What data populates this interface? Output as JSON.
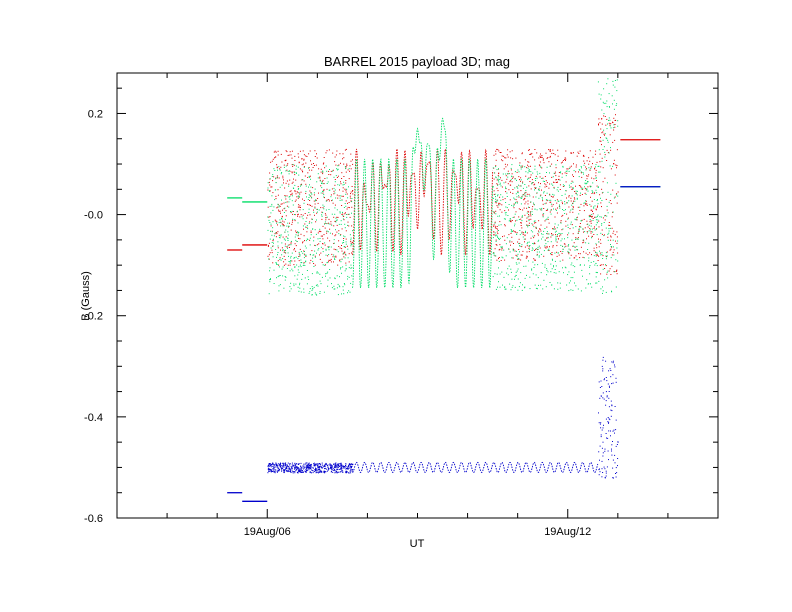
{
  "chart_data": {
    "type": "scatter",
    "title": "BARREL 2015 payload 3D; mag",
    "xlabel": "UT",
    "ylabel": "B (Gauss)",
    "x_hours": [
      3,
      15
    ],
    "x_ticks": [
      {
        "hour": 6,
        "label": "19Aug/06"
      },
      {
        "hour": 12,
        "label": "19Aug/12"
      }
    ],
    "x_minor_hours": [
      4,
      5,
      7,
      8,
      9,
      10,
      11,
      13,
      14
    ],
    "ylim": [
      -0.6,
      0.28
    ],
    "y_ticks": [
      {
        "value": 0.2,
        "label": "0.2"
      },
      {
        "value": 0.0,
        "label": "-0.0"
      },
      {
        "value": -0.2,
        "label": "-0.2"
      },
      {
        "value": -0.4,
        "label": "-0.4"
      },
      {
        "value": -0.6,
        "label": "-0.6"
      }
    ],
    "y_minor_step": 0.05,
    "series": [
      {
        "color": "#dd0000",
        "segments": [
          {
            "kind": "flat",
            "x": [
              5.2,
              5.5
            ],
            "y": -0.07
          },
          {
            "kind": "flat",
            "x": [
              5.5,
              6.0
            ],
            "y": -0.06
          },
          {
            "kind": "band",
            "x": [
              6.0,
              7.7
            ],
            "y": [
              -0.1,
              0.13
            ]
          },
          {
            "kind": "wave",
            "x": [
              7.7,
              10.5
            ],
            "y": [
              -0.08,
              0.13
            ],
            "dips": [
              [
                8.0,
                0.02
              ],
              [
                8.35,
                0.06
              ],
              [
                8.9,
                0.08
              ],
              [
                9.2,
                0.1
              ],
              [
                9.75,
                0.08
              ],
              [
                10.2,
                0.05
              ]
            ]
          },
          {
            "kind": "band",
            "x": [
              10.5,
              12.6
            ],
            "y": [
              -0.09,
              0.13
            ]
          },
          {
            "kind": "band",
            "x": [
              12.6,
              13.0
            ],
            "y": [
              -0.12,
              0.2
            ]
          },
          {
            "kind": "flat",
            "x": [
              13.05,
              13.85
            ],
            "y": 0.148
          }
        ]
      },
      {
        "color": "#00dd66",
        "segments": [
          {
            "kind": "flat",
            "x": [
              5.2,
              5.5
            ],
            "y": 0.033
          },
          {
            "kind": "flat",
            "x": [
              5.5,
              6.0
            ],
            "y": 0.025
          },
          {
            "kind": "band",
            "x": [
              6.0,
              7.7
            ],
            "y": [
              -0.16,
              0.1
            ]
          },
          {
            "kind": "wave",
            "x": [
              7.7,
              10.5
            ],
            "y": [
              -0.145,
              0.11
            ],
            "dips": [
              [
                9.0,
                0.17
              ],
              [
                9.2,
                0.14
              ],
              [
                9.5,
                0.19
              ]
            ]
          },
          {
            "kind": "band",
            "x": [
              10.5,
              12.6
            ],
            "y": [
              -0.15,
              0.1
            ]
          },
          {
            "kind": "band",
            "x": [
              12.6,
              13.0
            ],
            "y": [
              -0.16,
              0.27
            ]
          },
          {
            "kind": "flat",
            "x": [
              13.05,
              13.85
            ],
            "y": 0.055
          }
        ]
      },
      {
        "color": "#0000cc",
        "segments": [
          {
            "kind": "flat",
            "x": [
              5.2,
              5.5
            ],
            "y": -0.55
          },
          {
            "kind": "flat",
            "x": [
              5.5,
              6.0
            ],
            "y": -0.567
          },
          {
            "kind": "band",
            "x": [
              6.0,
              7.7
            ],
            "y": [
              -0.51,
              -0.49
            ]
          },
          {
            "kind": "wave",
            "x": [
              7.7,
              12.6
            ],
            "y": [
              -0.51,
              -0.49
            ],
            "dips": []
          },
          {
            "kind": "band",
            "x": [
              12.6,
              13.0
            ],
            "y": [
              -0.52,
              -0.28
            ]
          },
          {
            "kind": "flat",
            "x": [
              13.05,
              13.85
            ],
            "y": 0.055
          }
        ]
      }
    ]
  }
}
